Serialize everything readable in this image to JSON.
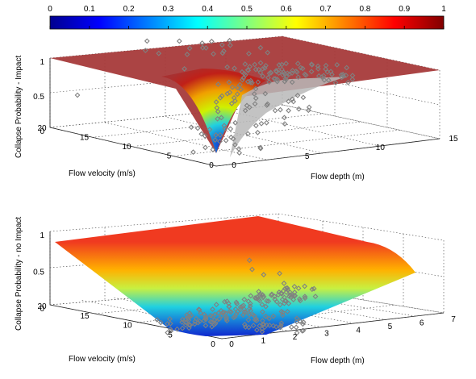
{
  "colorbar": {
    "ticks": [
      "0",
      "0.1",
      "0.2",
      "0.3",
      "0.4",
      "0.5",
      "0.6",
      "0.7",
      "0.8",
      "0.9",
      "1"
    ],
    "range": [
      0,
      1
    ],
    "colormap": "jet"
  },
  "chart_data": [
    {
      "type": "surface3d",
      "zlabel": "Collapse Probability - Impact",
      "xlabel": "Flow depth (m)",
      "ylabel": "Flow velocity (m/s)",
      "xlim": [
        0,
        15
      ],
      "ylim": [
        0,
        20
      ],
      "zlim": [
        0,
        1
      ],
      "x_ticks": [
        "0",
        "5",
        "10",
        "15"
      ],
      "y_ticks": [
        "0",
        "5",
        "10",
        "15",
        "20"
      ],
      "z_ticks": [
        "0",
        "0.5",
        "1"
      ],
      "surface_profile": {
        "x": [
          0,
          0.5,
          1,
          2,
          3,
          5,
          10,
          15
        ],
        "probability": [
          0.05,
          0.3,
          0.55,
          0.8,
          0.92,
          0.98,
          1.0,
          1.0
        ]
      },
      "scatter_color": "#808080",
      "grid": true
    },
    {
      "type": "surface3d",
      "zlabel": "Collapse Probability - no Impact",
      "xlabel": "Flow depth (m)",
      "ylabel": "Flow velocity (m/s)",
      "xlim": [
        0,
        7
      ],
      "ylim": [
        0,
        20
      ],
      "zlim": [
        0,
        1
      ],
      "x_ticks": [
        "0",
        "1",
        "2",
        "3",
        "4",
        "5",
        "6",
        "7"
      ],
      "y_ticks": [
        "0",
        "5",
        "10",
        "15",
        "20"
      ],
      "z_ticks": [
        "0",
        "0.5",
        "1"
      ],
      "surface_profile": {
        "y": [
          0,
          2,
          5,
          10,
          15,
          20
        ],
        "probability": [
          0.0,
          0.05,
          0.2,
          0.45,
          0.7,
          0.85
        ]
      },
      "scatter_color": "#808080",
      "grid": true
    }
  ]
}
